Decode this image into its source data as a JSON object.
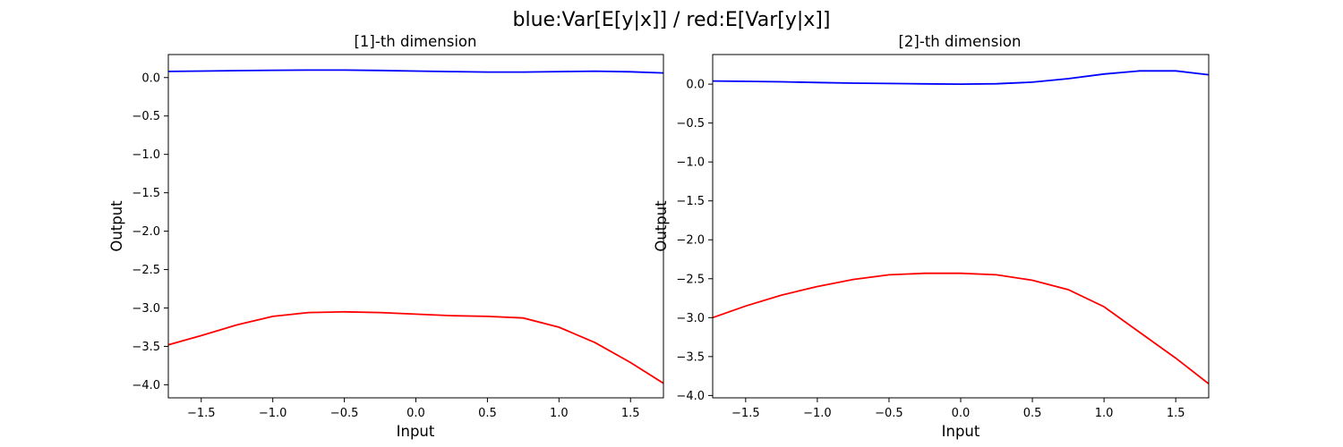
{
  "suptitle": "blue:Var[E[y|x]] / red:E[Var[y|x]]",
  "colors": {
    "blue": "#0000ff",
    "red": "#ff0000"
  },
  "chart_data": [
    {
      "type": "line",
      "title": "[1]-th dimension",
      "xlabel": "Input",
      "ylabel": "Output",
      "xlim": [
        -1.73,
        1.73
      ],
      "ylim": [
        -4.17,
        0.3
      ],
      "xticks": [
        -1.5,
        -1.0,
        -0.5,
        0.0,
        0.5,
        1.0,
        1.5
      ],
      "xtick_labels": [
        "−1.5",
        "−1.0",
        "−0.5",
        "0.0",
        "0.5",
        "1.0",
        "1.5"
      ],
      "yticks": [
        0.0,
        -0.5,
        -1.0,
        -1.5,
        -2.0,
        -2.5,
        -3.0,
        -3.5,
        -4.0
      ],
      "ytick_labels": [
        "0.0",
        "−0.5",
        "−1.0",
        "−1.5",
        "−2.0",
        "−2.5",
        "−3.0",
        "−3.5",
        "−4.0"
      ],
      "grid": false,
      "series": [
        {
          "color": "blue",
          "x": [
            -1.73,
            -1.5,
            -1.25,
            -1.0,
            -0.75,
            -0.5,
            -0.25,
            0.0,
            0.25,
            0.5,
            0.75,
            1.0,
            1.25,
            1.5,
            1.73
          ],
          "y": [
            0.08,
            0.085,
            0.09,
            0.095,
            0.098,
            0.098,
            0.093,
            0.085,
            0.078,
            0.072,
            0.072,
            0.078,
            0.083,
            0.075,
            0.06
          ]
        },
        {
          "color": "red",
          "x": [
            -1.73,
            -1.5,
            -1.25,
            -1.0,
            -0.75,
            -0.5,
            -0.25,
            0.0,
            0.25,
            0.5,
            0.75,
            1.0,
            1.25,
            1.5,
            1.73
          ],
          "y": [
            -3.48,
            -3.36,
            -3.22,
            -3.11,
            -3.06,
            -3.05,
            -3.06,
            -3.08,
            -3.1,
            -3.11,
            -3.13,
            -3.25,
            -3.45,
            -3.71,
            -3.98
          ]
        }
      ]
    },
    {
      "type": "line",
      "title": "[2]-th dimension",
      "xlabel": "Input",
      "ylabel": "Output",
      "xlim": [
        -1.73,
        1.73
      ],
      "ylim": [
        -4.03,
        0.38
      ],
      "xticks": [
        -1.5,
        -1.0,
        -0.5,
        0.0,
        0.5,
        1.0,
        1.5
      ],
      "xtick_labels": [
        "−1.5",
        "−1.0",
        "−0.5",
        "0.0",
        "0.5",
        "1.0",
        "1.5"
      ],
      "yticks": [
        0.0,
        -0.5,
        -1.0,
        -1.5,
        -2.0,
        -2.5,
        -3.0,
        -3.5,
        -4.0
      ],
      "ytick_labels": [
        "0.0",
        "−0.5",
        "−1.0",
        "−1.5",
        "−2.0",
        "−2.5",
        "−3.0",
        "−3.5",
        "−4.0"
      ],
      "grid": false,
      "series": [
        {
          "color": "blue",
          "x": [
            -1.73,
            -1.5,
            -1.25,
            -1.0,
            -0.75,
            -0.5,
            -0.25,
            0.0,
            0.25,
            0.5,
            0.75,
            1.0,
            1.25,
            1.5,
            1.73
          ],
          "y": [
            0.04,
            0.035,
            0.03,
            0.02,
            0.012,
            0.008,
            0.003,
            0.0,
            0.005,
            0.025,
            0.07,
            0.13,
            0.17,
            0.17,
            0.12
          ]
        },
        {
          "color": "red",
          "x": [
            -1.73,
            -1.5,
            -1.25,
            -1.0,
            -0.75,
            -0.5,
            -0.25,
            0.0,
            0.25,
            0.5,
            0.75,
            1.0,
            1.25,
            1.5,
            1.73
          ],
          "y": [
            -3.0,
            -2.85,
            -2.71,
            -2.6,
            -2.51,
            -2.45,
            -2.43,
            -2.43,
            -2.45,
            -2.52,
            -2.64,
            -2.86,
            -3.19,
            -3.52,
            -3.85
          ]
        }
      ]
    }
  ]
}
